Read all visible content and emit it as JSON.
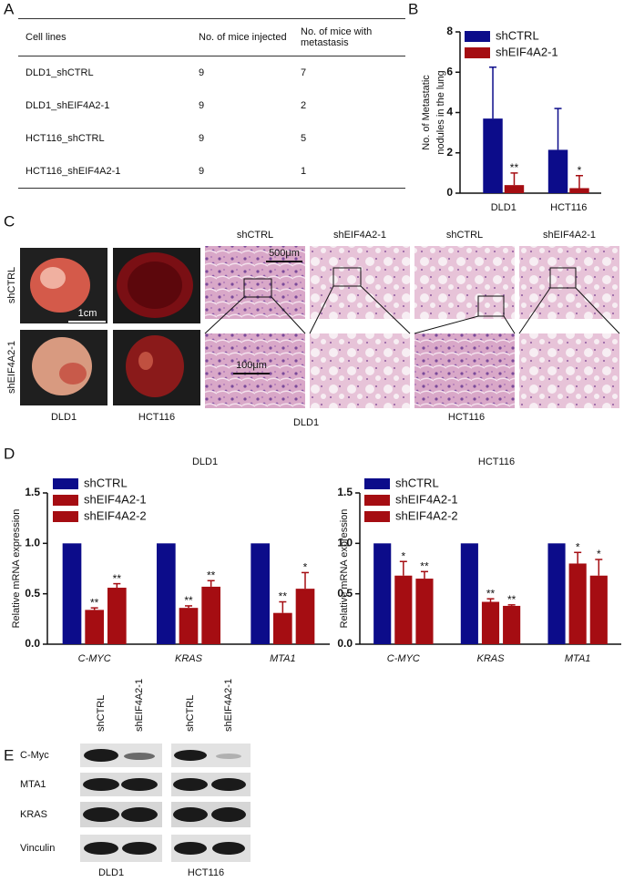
{
  "panel_labels": [
    "A",
    "B",
    "C",
    "D",
    "E"
  ],
  "table": {
    "header": [
      "Cell lines",
      "No. of mice injected",
      "No. of mice with metastasis"
    ],
    "rows": [
      [
        "DLD1_shCTRL",
        9,
        7
      ],
      [
        "DLD1_shEIF4A2-1",
        9,
        2
      ],
      [
        "HCT116_shCTRL",
        9,
        5
      ],
      [
        "HCT116_shEIF4A2-1",
        9,
        1
      ]
    ]
  },
  "chart_data": [
    {
      "type": "bar",
      "ylabel": [
        "No. of Metastatic",
        "nodules  in the lung"
      ],
      "categories": [
        "DLD1",
        "HCT116"
      ],
      "series": [
        {
          "name": "shCTRL",
          "color": "#0c0c8a",
          "values": [
            3.7,
            2.15
          ],
          "errors": [
            2.55,
            2.05
          ],
          "significance": [
            null,
            null
          ]
        },
        {
          "name": "shEIF4A2-1",
          "color": "#a50d12",
          "values": [
            0.4,
            0.25
          ],
          "errors": [
            0.6,
            0.62
          ],
          "significance": [
            "**",
            "*"
          ]
        }
      ],
      "ylim": [
        0,
        8
      ],
      "yticks": [
        0,
        2,
        4,
        6,
        8
      ]
    },
    {
      "type": "bar",
      "title": "DLD1",
      "ylabel": [
        "Relative  mRNA expression"
      ],
      "categories": [
        "C-MYC",
        "KRAS",
        "MTA1"
      ],
      "series": [
        {
          "name": "shCTRL",
          "color": "#0c0c8a",
          "values": [
            1,
            1,
            1
          ],
          "errors": [
            null,
            null,
            null
          ],
          "significance": [
            null,
            null,
            null
          ]
        },
        {
          "name": "shEIF4A2-1",
          "color": "#a50d12",
          "values": [
            0.34,
            0.36,
            0.31
          ],
          "errors": [
            0.02,
            0.02,
            0.11
          ],
          "significance": [
            "**",
            "**",
            "**"
          ]
        },
        {
          "name": "shEIF4A2-2",
          "color": "#a50d12",
          "values": [
            0.56,
            0.57,
            0.55
          ],
          "errors": [
            0.04,
            0.06,
            0.16
          ],
          "significance": [
            "**",
            "**",
            "*"
          ]
        }
      ],
      "ylim": [
        0,
        1.5
      ],
      "yticks": [
        {
          "value": 0,
          "label": "0.0"
        },
        {
          "value": 0.5,
          "label": "0.5"
        },
        {
          "value": 1,
          "label": "1.0"
        },
        {
          "value": 1.5,
          "label": "1.5"
        }
      ]
    },
    {
      "type": "bar",
      "title": "HCT116",
      "ylabel": [
        "Relative  mRNA expression"
      ],
      "categories": [
        "C-MYC",
        "KRAS",
        "MTA1"
      ],
      "series": [
        {
          "name": "shCTRL",
          "color": "#0c0c8a",
          "values": [
            1,
            1,
            1
          ],
          "errors": [
            null,
            null,
            null
          ],
          "significance": [
            null,
            null,
            null
          ]
        },
        {
          "name": "shEIF4A2-1",
          "color": "#a50d12",
          "values": [
            0.68,
            0.42,
            0.8
          ],
          "errors": [
            0.14,
            0.03,
            0.11
          ],
          "significance": [
            "*",
            "**",
            "*"
          ]
        },
        {
          "name": "shEIF4A2-2",
          "color": "#a50d12",
          "values": [
            0.65,
            0.38,
            0.68
          ],
          "errors": [
            0.07,
            0.01,
            0.16
          ],
          "significance": [
            "**",
            "**",
            "*"
          ]
        }
      ],
      "ylim": [
        0,
        1.5
      ],
      "yticks": [
        {
          "value": 0,
          "label": "0.0"
        },
        {
          "value": 0.5,
          "label": "0.5"
        },
        {
          "value": 1,
          "label": "1.0"
        },
        {
          "value": 1.5,
          "label": "1.5"
        }
      ]
    }
  ],
  "panel_c": {
    "row_labels": [
      "shCTRL",
      "shEIF4A2-1"
    ],
    "photo_labels": [
      "DLD1",
      "HCT116"
    ],
    "photo_scale": "1cm",
    "column_labels": [
      "shCTRL",
      "shEIF4A2-1",
      "shCTRL",
      "shEIF4A2-1"
    ],
    "low_scale": "500μm",
    "high_scale": "100μm",
    "group_labels": [
      "DLD1",
      "HCT116"
    ]
  },
  "panel_e": {
    "lane_labels": [
      "shCTRL",
      "shEIF4A2-1",
      "shCTRL",
      "shEIF4A2-1"
    ],
    "proteins": [
      "C-Myc",
      "MTA1",
      "KRAS",
      "Vinculin"
    ],
    "cell_lines": [
      "DLD1",
      "HCT116"
    ]
  }
}
